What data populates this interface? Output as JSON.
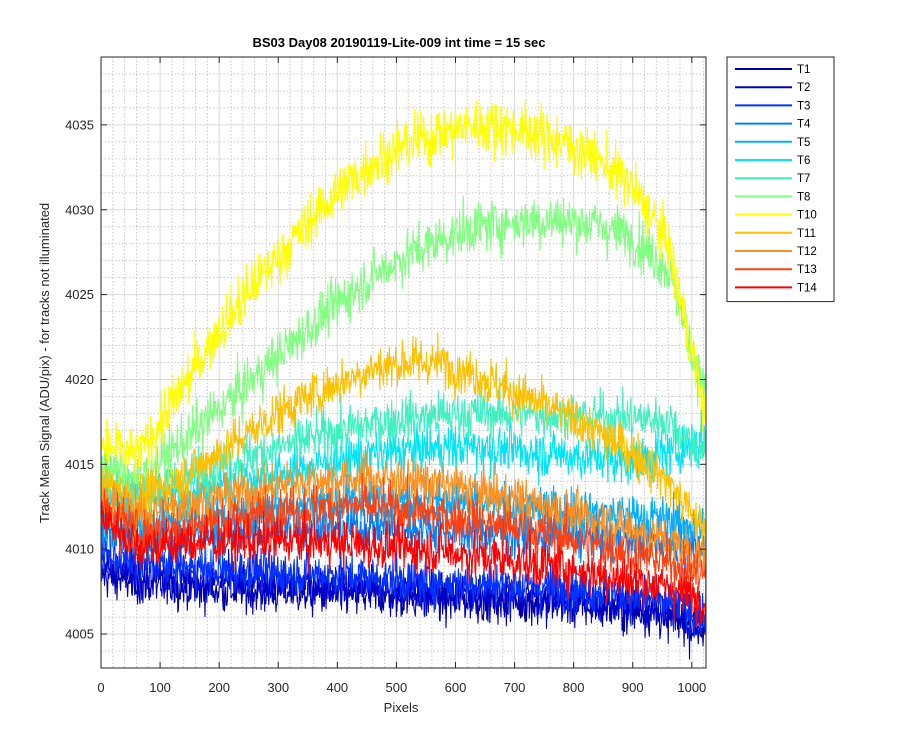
{
  "chart_data": {
    "type": "line",
    "title": "BS03 Day08 20190119-Lite-009 int time = 15 sec",
    "xlabel": "Pixels",
    "ylabel": "Track Mean Signal (ADU/pix) - for tracks not illuminated",
    "xlim": [
      0,
      1024
    ],
    "ylim": [
      4003,
      4039
    ],
    "xticks": [
      0,
      100,
      200,
      300,
      400,
      500,
      600,
      700,
      800,
      900,
      1000
    ],
    "yticks": [
      4005,
      4010,
      4015,
      4020,
      4025,
      4030,
      4035
    ],
    "grid": true,
    "minor_grid": true,
    "legend_position": "outside-right",
    "x_sample_step": 64,
    "x": [
      0,
      64,
      128,
      192,
      256,
      320,
      384,
      448,
      512,
      576,
      640,
      704,
      768,
      832,
      896,
      960,
      1023
    ],
    "series": [
      {
        "name": "T1",
        "color": "#0000AA",
        "noise": 1.2,
        "values": [
          4008.5,
          4008.0,
          4007.8,
          4007.6,
          4007.5,
          4007.5,
          4007.4,
          4007.3,
          4007.2,
          4007.0,
          4007.0,
          4006.9,
          4006.8,
          4006.6,
          4006.4,
          4006.0,
          4005.2
        ]
      },
      {
        "name": "T2",
        "color": "#0000CC",
        "noise": 1.2,
        "values": [
          4009.0,
          4008.6,
          4008.4,
          4008.2,
          4008.1,
          4008.0,
          4007.9,
          4007.8,
          4007.6,
          4007.5,
          4007.4,
          4007.3,
          4007.2,
          4007.0,
          4006.7,
          4006.3,
          4005.5
        ]
      },
      {
        "name": "T3",
        "color": "#0033FF",
        "noise": 1.2,
        "values": [
          4009.8,
          4009.2,
          4009.0,
          4008.8,
          4008.7,
          4008.6,
          4008.5,
          4008.4,
          4008.2,
          4008.0,
          4008.0,
          4007.9,
          4007.8,
          4007.6,
          4007.3,
          4006.8,
          4006.0
        ]
      },
      {
        "name": "T4",
        "color": "#0080FF",
        "noise": 1.3,
        "values": [
          4011.0,
          4010.6,
          4010.6,
          4010.8,
          4011.0,
          4011.2,
          4011.3,
          4011.3,
          4011.3,
          4011.2,
          4011.0,
          4010.9,
          4010.8,
          4010.7,
          4010.6,
          4010.4,
          4010.0
        ]
      },
      {
        "name": "T5",
        "color": "#00B0FF",
        "noise": 1.3,
        "values": [
          4012.0,
          4011.5,
          4011.7,
          4012.0,
          4012.3,
          4012.6,
          4012.8,
          4013.0,
          4013.0,
          4012.9,
          4012.7,
          4012.5,
          4012.3,
          4012.2,
          4012.0,
          4011.7,
          4011.3
        ]
      },
      {
        "name": "T6",
        "color": "#00E5F5",
        "noise": 1.3,
        "values": [
          4013.5,
          4013.0,
          4013.2,
          4013.6,
          4014.1,
          4014.6,
          4015.1,
          4015.5,
          4015.8,
          4016.0,
          4016.0,
          4015.8,
          4015.6,
          4015.4,
          4015.2,
          4015.6,
          4016.5
        ]
      },
      {
        "name": "T7",
        "color": "#40F0C0",
        "noise": 1.3,
        "values": [
          4014.5,
          4013.5,
          4014.0,
          4014.8,
          4015.5,
          4016.2,
          4016.8,
          4017.3,
          4017.7,
          4017.9,
          4018.0,
          4018.0,
          4017.9,
          4017.8,
          4017.7,
          4017.6,
          4015.5
        ]
      },
      {
        "name": "T8",
        "color": "#80FF80",
        "noise": 1.4,
        "values": [
          4015.0,
          4014.2,
          4016.0,
          4018.0,
          4020.0,
          4022.0,
          4024.0,
          4025.8,
          4027.2,
          4028.3,
          4029.0,
          4029.3,
          4029.4,
          4029.2,
          4028.5,
          4026.5,
          4019.0
        ]
      },
      {
        "name": "T10",
        "color": "#FFFF00",
        "noise": 1.5,
        "values": [
          4016.0,
          4015.5,
          4019.0,
          4022.5,
          4025.5,
          4028.0,
          4030.5,
          4032.5,
          4033.8,
          4034.6,
          4035.0,
          4034.8,
          4034.2,
          4033.2,
          4031.5,
          4028.0,
          4018.0
        ]
      },
      {
        "name": "T11",
        "color": "#FFC000",
        "noise": 1.3,
        "values": [
          4014.0,
          4013.0,
          4014.0,
          4015.5,
          4017.0,
          4018.5,
          4019.5,
          4020.5,
          4021.0,
          4021.0,
          4020.2,
          4019.2,
          4018.2,
          4017.0,
          4015.8,
          4014.0,
          4011.0
        ]
      },
      {
        "name": "T12",
        "color": "#FF9020",
        "noise": 1.3,
        "values": [
          4013.0,
          4012.0,
          4012.5,
          4013.0,
          4013.5,
          4013.9,
          4014.1,
          4014.2,
          4014.1,
          4013.8,
          4013.4,
          4012.9,
          4012.4,
          4011.8,
          4011.2,
          4010.5,
          4009.5
        ]
      },
      {
        "name": "T13",
        "color": "#FF4010",
        "noise": 1.3,
        "values": [
          4012.5,
          4011.0,
          4011.2,
          4011.6,
          4012.0,
          4012.3,
          4012.5,
          4012.5,
          4012.3,
          4012.0,
          4011.6,
          4011.2,
          4010.8,
          4010.3,
          4009.8,
          4009.2,
          4008.5
        ]
      },
      {
        "name": "T14",
        "color": "#FF0000",
        "noise": 1.3,
        "values": [
          4012.0,
          4010.2,
          4010.3,
          4010.5,
          4010.5,
          4010.5,
          4010.4,
          4010.3,
          4010.1,
          4009.9,
          4009.6,
          4009.3,
          4009.0,
          4008.6,
          4008.2,
          4007.7,
          4007.0
        ]
      }
    ]
  }
}
